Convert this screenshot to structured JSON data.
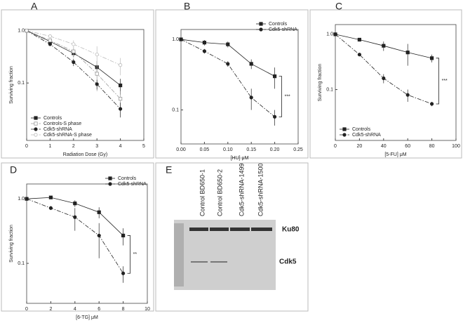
{
  "chart_data": [
    {
      "type": "line",
      "panel_label": "A",
      "y_label": "Surviving fraction",
      "x_label": "Radiation Dose (Gy)",
      "x": [
        0,
        1,
        2,
        3,
        4
      ],
      "xlim": [
        0,
        5
      ],
      "xticks": [
        0,
        1,
        2,
        3,
        4,
        5
      ],
      "ylim": [
        0.008,
        1.05
      ],
      "yticks": [
        {
          "value": 1,
          "label": "1.0"
        },
        0.1
      ],
      "log_y": true,
      "legend": "lower left",
      "series": [
        {
          "name": "Controls",
          "color": "#222222",
          "marker": "square",
          "filled": true,
          "dash": "solid",
          "values": [
            1.0,
            0.62,
            0.37,
            0.2,
            0.09
          ],
          "errors": [
            0,
            0.04,
            0.06,
            0.06,
            0.03
          ]
        },
        {
          "name": "Controls-S phase",
          "color": "#9a9a9a",
          "marker": "square",
          "filled": false,
          "dash": "dashdot",
          "values": [
            1.0,
            0.65,
            0.4,
            0.15,
            0.05
          ],
          "errors": [
            0,
            0.05,
            0.08,
            0.08,
            0.02
          ]
        },
        {
          "name": "Cdk5-shRNA",
          "color": "#222222",
          "marker": "circle",
          "filled": true,
          "dash": "dashdot",
          "values": [
            1.0,
            0.55,
            0.25,
            0.095,
            0.032
          ],
          "errors": [
            0,
            0.04,
            0.04,
            0.02,
            0.01
          ]
        },
        {
          "name": "Cdk5-shRNA-S phase",
          "color": "#bbbbbb",
          "marker": "circle",
          "filled": false,
          "dash": "dashdot",
          "values": [
            1.0,
            0.78,
            0.55,
            0.35,
            0.22
          ],
          "errors": [
            0,
            0.05,
            0.1,
            0.15,
            0.08
          ]
        }
      ]
    },
    {
      "type": "line",
      "panel_label": "B",
      "x_label": "[HU] μM",
      "x": [
        0,
        0.05,
        0.1,
        0.15,
        0.2
      ],
      "xlim": [
        0,
        0.25
      ],
      "xticks": [
        {
          "value": 0,
          "label": "0.00"
        },
        0.05,
        {
          "value": 0.1,
          "label": "0.10"
        },
        0.15,
        {
          "value": 0.2,
          "label": "0.20"
        },
        0.25
      ],
      "ylim": [
        0.033,
        1.38
      ],
      "yticks": [
        {
          "value": 1,
          "label": "1.0"
        },
        0.1
      ],
      "log_y": true,
      "legend": "upper right",
      "annotation": "***",
      "series": [
        {
          "name": "Controls",
          "color": "#222222",
          "marker": "square",
          "filled": true,
          "dash": "solid",
          "values": [
            1.0,
            0.9,
            0.85,
            0.45,
            0.3
          ],
          "errors": [
            0,
            0.08,
            0.08,
            0.07,
            0.1
          ]
        },
        {
          "name": "Cdk5-shRNA",
          "color": "#222222",
          "marker": "circle",
          "filled": true,
          "dash": "dashdot",
          "values": [
            1.0,
            0.68,
            0.45,
            0.15,
            0.08
          ],
          "errors": [
            0,
            0.05,
            0.04,
            0.05,
            0.02
          ]
        }
      ]
    },
    {
      "type": "line",
      "panel_label": "C",
      "y_label": "Surviving fraction",
      "x_label": "[5-FU] μM",
      "x": [
        0,
        20,
        40,
        60,
        80
      ],
      "xlim": [
        0,
        100
      ],
      "xticks": [
        0,
        20,
        40,
        60,
        80,
        100
      ],
      "ylim": [
        0.012,
        1.5
      ],
      "yticks": [
        {
          "value": 1,
          "label": "1.0"
        },
        0.1
      ],
      "log_y": true,
      "legend": "lower left",
      "annotation": "***",
      "series": [
        {
          "name": "Controls",
          "color": "#222222",
          "marker": "square",
          "filled": true,
          "dash": "solid",
          "values": [
            1.0,
            0.8,
            0.62,
            0.47,
            0.37
          ],
          "errors": [
            0,
            0.06,
            0.12,
            0.2,
            0.06
          ]
        },
        {
          "name": "Cdk5-shRNA",
          "color": "#222222",
          "marker": "circle",
          "filled": true,
          "dash": "dashdot",
          "values": [
            1.0,
            0.43,
            0.16,
            0.08,
            0.055
          ],
          "errors": [
            0,
            0.03,
            0.03,
            0.02,
            0.005
          ]
        }
      ]
    },
    {
      "type": "line",
      "panel_label": "D",
      "y_label": "Surviving fraction",
      "x_label": "[6-TG] μM",
      "x": [
        0,
        2,
        4,
        6,
        8
      ],
      "xlim": [
        0,
        10
      ],
      "xticks": [
        0,
        2,
        4,
        6,
        8,
        10
      ],
      "ylim": [
        0.024,
        1.7
      ],
      "yticks": [
        {
          "value": 1,
          "label": "1.0"
        },
        0.1
      ],
      "log_y": true,
      "legend": "upper right",
      "annotation": "**",
      "series": [
        {
          "name": "Controls",
          "color": "#222222",
          "marker": "square",
          "filled": true,
          "dash": "solid",
          "values": [
            1.0,
            1.05,
            0.85,
            0.62,
            0.27
          ],
          "errors": [
            0,
            0.04,
            0.1,
            0.12,
            0.08
          ]
        },
        {
          "name": "Cdk5-shRNA",
          "color": "#222222",
          "marker": "circle",
          "filled": true,
          "dash": "dashdot",
          "values": [
            1.0,
            0.72,
            0.52,
            0.27,
            0.07
          ],
          "errors": [
            0,
            0.05,
            0.2,
            0.15,
            0.02
          ]
        }
      ]
    }
  ],
  "blot": {
    "panel_label": "E",
    "lanes": [
      "Control BD650-1",
      "Control BD650-2",
      "Cdk5-shRNA-1499",
      "Cdk5-shRNA-1500"
    ],
    "bands": [
      "Ku80",
      "Cdk5"
    ]
  }
}
